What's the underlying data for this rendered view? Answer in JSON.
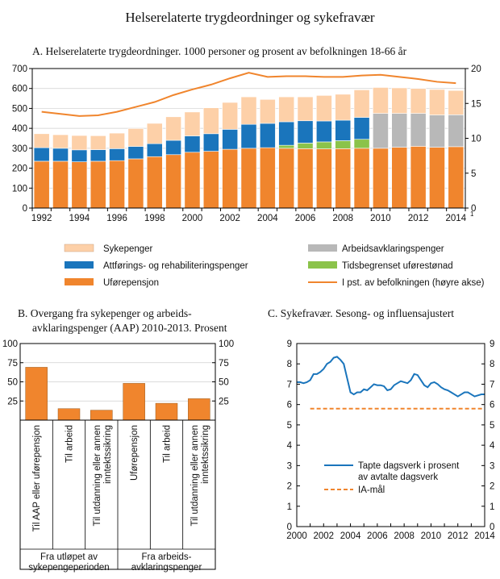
{
  "figure_title": "Helserelaterte trygdeordninger og  sykefravær",
  "chart_data": [
    {
      "id": "A",
      "type": "bar",
      "stacked": true,
      "title": "A.  Helserelaterte trygdeordninger. 1000 personer og prosent av befolkningen 18-66 år",
      "categories": [
        1992,
        1993,
        1994,
        1995,
        1996,
        1997,
        1998,
        1999,
        2000,
        2001,
        2002,
        2003,
        2004,
        2005,
        2006,
        2007,
        2008,
        2009,
        2010,
        2011,
        2012,
        2013,
        2014
      ],
      "x_tick_labels": [
        "1992",
        "1994",
        "1996",
        "1998",
        "2000",
        "2002",
        "2004",
        "2006",
        "2008",
        "2010",
        "2012",
        "2014"
      ],
      "x_tick_footnote": "1",
      "ylim_left": [
        0,
        700
      ],
      "y_ticks_left": [
        "0",
        "100",
        "200",
        "300",
        "400",
        "500",
        "600",
        "700"
      ],
      "ylim_right": [
        0,
        20
      ],
      "y_ticks_right": [
        "0",
        "5",
        "10",
        "15",
        "20"
      ],
      "series": [
        {
          "name": "Uførepensjon",
          "color": "#f0852d",
          "values": [
            235,
            235,
            232,
            235,
            238,
            247,
            258,
            268,
            280,
            285,
            295,
            300,
            303,
            300,
            298,
            297,
            298,
            300,
            300,
            305,
            310,
            305,
            308
          ]
        },
        {
          "name": "Tidsbegrenset uførestønad",
          "color": "#8bc34a",
          "values": [
            0,
            0,
            0,
            0,
            0,
            0,
            0,
            0,
            0,
            0,
            0,
            0,
            0,
            15,
            28,
            35,
            40,
            45,
            0,
            0,
            0,
            0,
            0
          ]
        },
        {
          "name": "Attførings- og rehabiliteringspenger",
          "color": "#1a75bc",
          "values": [
            68,
            65,
            60,
            58,
            60,
            62,
            65,
            72,
            82,
            88,
            100,
            120,
            122,
            118,
            112,
            105,
            103,
            110,
            0,
            0,
            0,
            0,
            0
          ]
        },
        {
          "name": "Arbeidsavklaringspenger",
          "color": "#b8b8b8",
          "values": [
            0,
            0,
            0,
            0,
            0,
            0,
            0,
            0,
            0,
            0,
            0,
            0,
            0,
            0,
            0,
            0,
            0,
            0,
            175,
            170,
            165,
            162,
            160
          ]
        },
        {
          "name": "Sykepenger",
          "color": "#fdd0a8",
          "values": [
            70,
            68,
            72,
            70,
            78,
            90,
            102,
            118,
            120,
            130,
            135,
            138,
            120,
            125,
            120,
            128,
            130,
            138,
            130,
            128,
            125,
            128,
            122
          ]
        }
      ],
      "line_series": {
        "name": "I pst. av befolkningen (høyre akse)",
        "color": "#f0852d",
        "axis": "right",
        "values": [
          13.8,
          13.5,
          13.2,
          13.3,
          13.8,
          14.5,
          15.2,
          16.2,
          17.0,
          17.7,
          18.6,
          19.4,
          18.8,
          18.9,
          18.9,
          18.8,
          18.8,
          19.0,
          19.1,
          18.8,
          18.5,
          18.1,
          17.9
        ]
      },
      "legend": {
        "left": [
          "Sykepenger",
          "Attførings- og rehabiliteringspenger",
          "Uførepensjon"
        ],
        "right": [
          "Arbeidsavklaringspenger",
          "Tidsbegrenset uførestønad",
          "I pst. av befolkningen (høyre akse)"
        ]
      }
    },
    {
      "id": "B",
      "type": "bar",
      "title_line1": "B.  Overgang fra sykepenger og arbeids-",
      "title_line2": "avklaringspenger (AAP) 2010-2013. Prosent",
      "color": "#f0852d",
      "ylim": [
        0,
        100
      ],
      "y_ticks": [
        "25",
        "50",
        "75",
        "100"
      ],
      "categories": [
        [
          "Til AAP eller uførepensjon"
        ],
        [
          "Til arbeid"
        ],
        [
          "Til utdanning eller annen",
          "inntektssikring"
        ],
        [
          "Uførepensjon"
        ],
        [
          "Til arbeid"
        ],
        [
          "Til utdanning eller annen",
          "inntektssikring"
        ]
      ],
      "values": [
        69,
        15,
        13,
        48,
        22,
        28
      ],
      "groups": [
        {
          "line1": "Fra utløpet av",
          "line2": "sykepengeperioden"
        },
        {
          "line1": "Fra arbeids-",
          "line2": "avklaringspenger"
        }
      ]
    },
    {
      "id": "C",
      "type": "line",
      "title": "C.  Sykefravær. Sesong- og influensajustert",
      "xlim": [
        2000,
        2014
      ],
      "x_tick_labels": [
        "2000",
        "2002",
        "2004",
        "2006",
        "2008",
        "2010",
        "2012",
        "2014"
      ],
      "ylim": [
        0,
        9
      ],
      "y_ticks": [
        "0",
        "1",
        "2",
        "3",
        "4",
        "5",
        "6",
        "7",
        "8",
        "9"
      ],
      "series": [
        {
          "name": "Tapte dagsverk i prosent av avtalte dagsverk",
          "legend_line1": "Tapte dagsverk i prosent",
          "legend_line2": "av  avtalte dagsverk",
          "color": "#1a75bc",
          "x": [
            2000.0,
            2000.25,
            2000.5,
            2000.75,
            2001.0,
            2001.25,
            2001.5,
            2001.75,
            2002.0,
            2002.25,
            2002.5,
            2002.75,
            2003.0,
            2003.25,
            2003.5,
            2003.75,
            2004.0,
            2004.25,
            2004.5,
            2004.75,
            2005.0,
            2005.25,
            2005.5,
            2005.75,
            2006.0,
            2006.25,
            2006.5,
            2006.75,
            2007.0,
            2007.25,
            2007.5,
            2007.75,
            2008.0,
            2008.25,
            2008.5,
            2008.75,
            2009.0,
            2009.25,
            2009.5,
            2009.75,
            2010.0,
            2010.25,
            2010.5,
            2010.75,
            2011.0,
            2011.25,
            2011.5,
            2011.75,
            2012.0,
            2012.25,
            2012.5,
            2012.75,
            2013.0,
            2013.25,
            2013.5,
            2013.75,
            2014.0
          ],
          "y": [
            7.1,
            7.1,
            7.05,
            7.1,
            7.2,
            7.5,
            7.5,
            7.6,
            7.75,
            8.0,
            8.1,
            8.3,
            8.35,
            8.2,
            8.0,
            7.3,
            6.6,
            6.5,
            6.6,
            6.6,
            6.75,
            6.7,
            6.85,
            7.0,
            6.95,
            6.95,
            6.9,
            6.7,
            6.75,
            6.95,
            7.05,
            7.15,
            7.1,
            7.05,
            7.2,
            7.5,
            7.45,
            7.2,
            6.95,
            6.85,
            7.05,
            7.1,
            7.0,
            6.85,
            6.75,
            6.7,
            6.6,
            6.5,
            6.4,
            6.5,
            6.6,
            6.6,
            6.5,
            6.4,
            6.45,
            6.5,
            6.5
          ]
        },
        {
          "name": "IA-mål",
          "color": "#f0852d",
          "dashed": true,
          "x": [
            2001,
            2014
          ],
          "y": [
            5.8,
            5.8
          ]
        }
      ]
    }
  ]
}
